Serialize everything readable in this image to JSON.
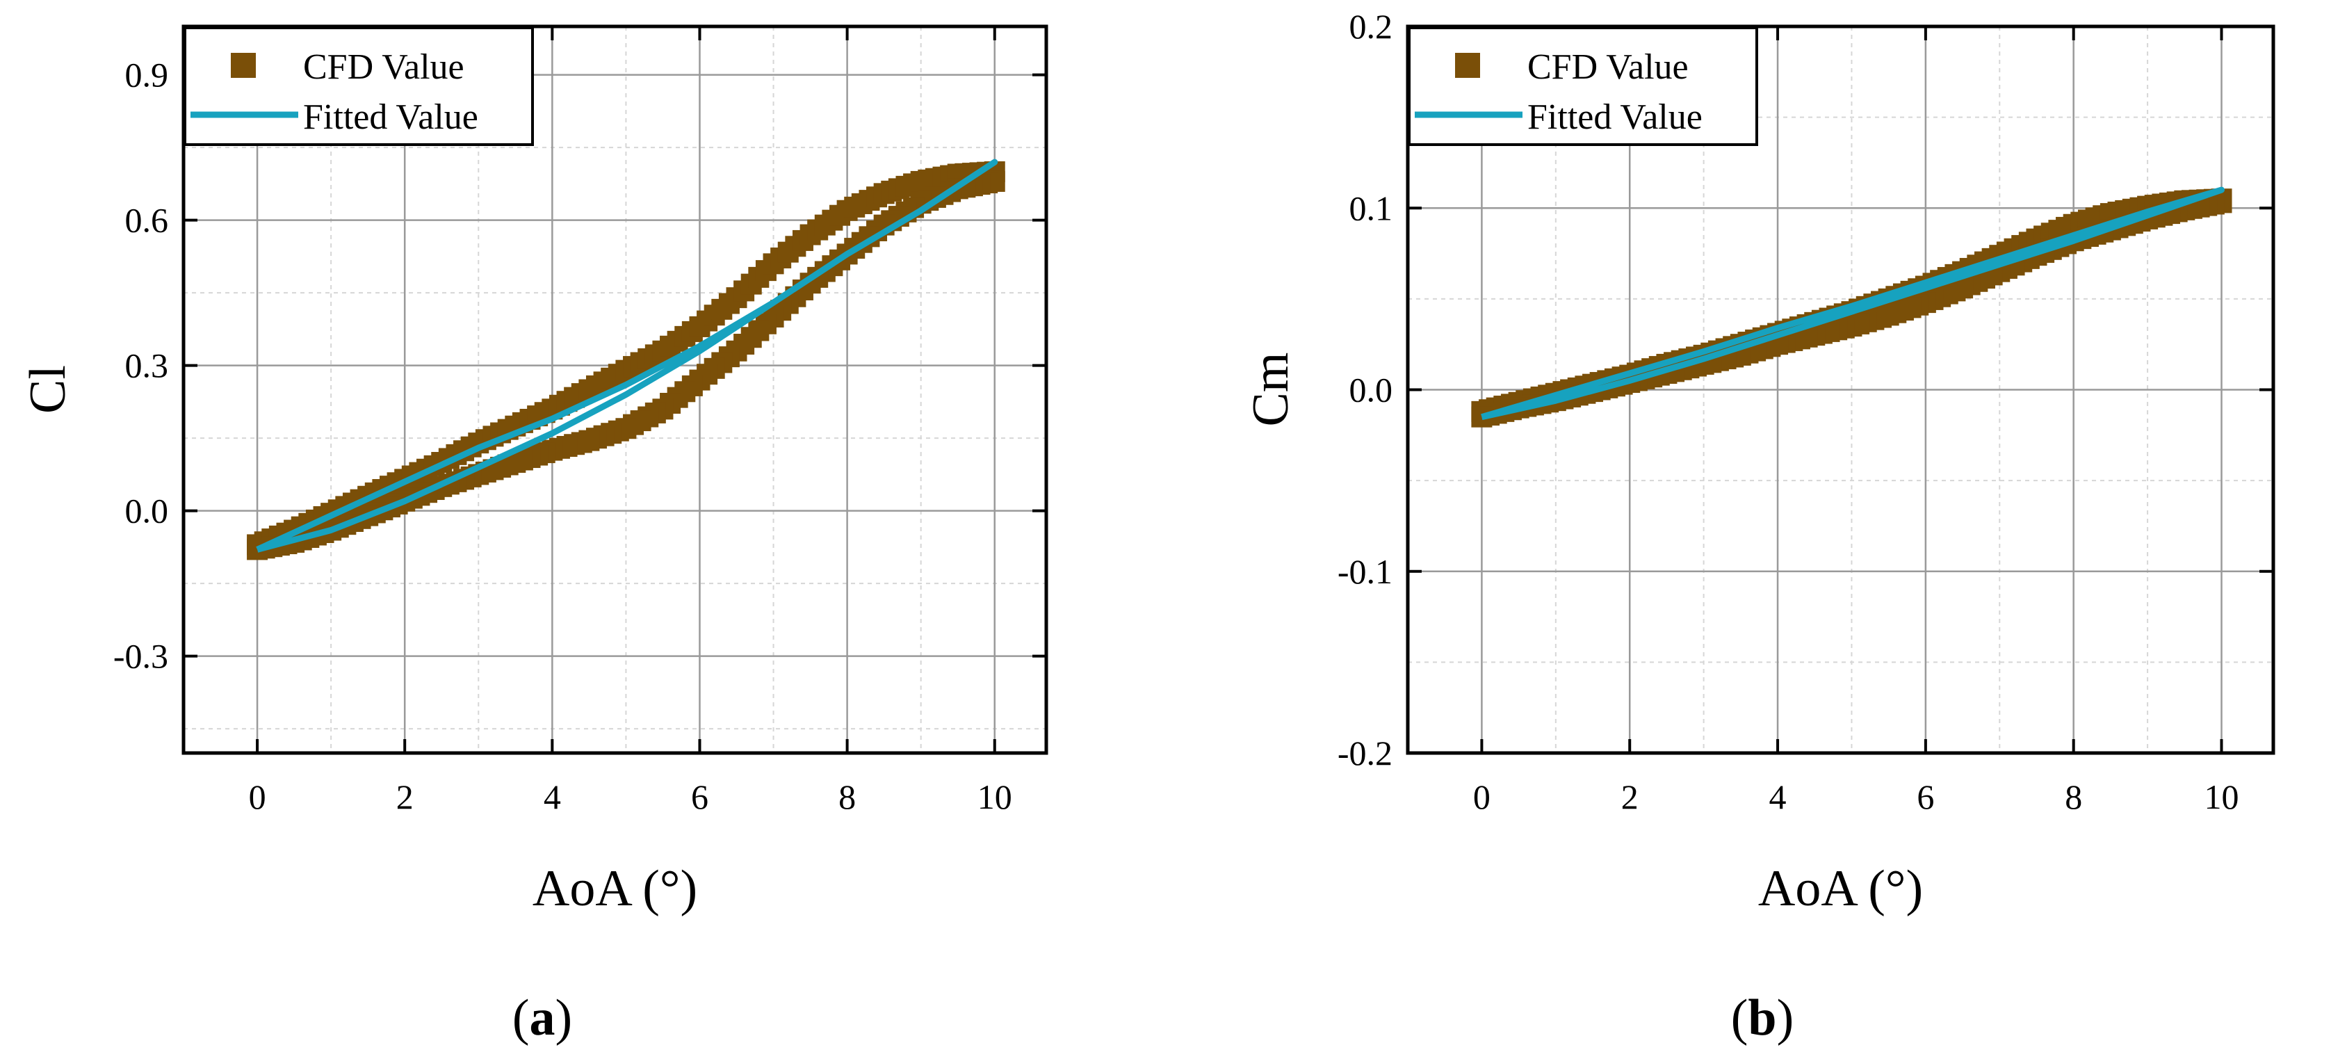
{
  "colors": {
    "cfd": "#7a4f08",
    "fitted": "#17a2bf",
    "grid_major": "#9a9a9a",
    "grid_minor": "#d6d6d6",
    "axis": "#000000"
  },
  "chart_data": [
    {
      "type": "scatter",
      "panel_label": "a",
      "xlabel": "AoA (°)",
      "ylabel": "Cl",
      "xlim": [
        -1,
        10.7
      ],
      "ylim": [
        -0.5,
        1.0
      ],
      "xticks": [
        0,
        2,
        4,
        6,
        8,
        10
      ],
      "xtick_labels": [
        "0",
        "2",
        "4",
        "6",
        "8",
        "10"
      ],
      "yticks": [
        -0.3,
        0.0,
        0.3,
        0.6,
        0.9
      ],
      "ytick_labels": [
        "-0.3",
        "0.0",
        "0.3",
        "0.6",
        "0.9"
      ],
      "grid": true,
      "legend_position": "top-left",
      "series": [
        {
          "name": "CFD Value",
          "kind": "markers",
          "loop_upper": {
            "x": [
              0,
              0.5,
              1,
              1.5,
              2,
              2.5,
              3,
              3.5,
              4,
              4.5,
              5,
              5.5,
              6,
              6.5,
              7,
              7.5,
              8,
              8.5,
              9,
              9.5,
              10
            ],
            "y": [
              -0.07,
              -0.04,
              -0.005,
              0.03,
              0.065,
              0.1,
              0.14,
              0.175,
              0.21,
              0.25,
              0.29,
              0.33,
              0.38,
              0.44,
              0.51,
              0.57,
              0.62,
              0.655,
              0.68,
              0.695,
              0.7
            ]
          },
          "loop_lower": {
            "x": [
              10,
              9.5,
              9,
              8.5,
              8,
              7.5,
              7,
              6.5,
              6,
              5.5,
              5,
              4.5,
              4,
              3.5,
              3,
              2.5,
              2,
              1.5,
              1,
              0.5,
              0
            ],
            "y": [
              0.68,
              0.665,
              0.635,
              0.59,
              0.53,
              0.47,
              0.4,
              0.33,
              0.27,
              0.21,
              0.17,
              0.145,
              0.125,
              0.1,
              0.075,
              0.05,
              0.02,
              -0.01,
              -0.04,
              -0.065,
              -0.08
            ]
          }
        },
        {
          "name": "Fitted Value",
          "kind": "line",
          "loop_upper": {
            "x": [
              0,
              1,
              2,
              3,
              4,
              5,
              6,
              7,
              8,
              9,
              10
            ],
            "y": [
              -0.08,
              -0.01,
              0.06,
              0.13,
              0.19,
              0.26,
              0.34,
              0.43,
              0.53,
              0.62,
              0.72
            ]
          },
          "loop_lower": {
            "x": [
              10,
              9,
              8,
              7,
              6,
              5,
              4,
              3,
              2,
              1,
              0
            ],
            "y": [
              0.72,
              0.62,
              0.53,
              0.43,
              0.33,
              0.24,
              0.16,
              0.09,
              0.02,
              -0.04,
              -0.08
            ]
          }
        }
      ]
    },
    {
      "type": "scatter",
      "panel_label": "b",
      "xlabel": "AoA (°)",
      "ylabel": "Cm",
      "xlim": [
        -1,
        10.7
      ],
      "ylim": [
        -0.2,
        0.2
      ],
      "xticks": [
        0,
        2,
        4,
        6,
        8,
        10
      ],
      "xtick_labels": [
        "0",
        "2",
        "4",
        "6",
        "8",
        "10"
      ],
      "yticks": [
        -0.2,
        -0.1,
        0.0,
        0.1,
        0.2
      ],
      "ytick_labels": [
        "-0.2",
        "-0.1",
        "0.0",
        "0.1",
        "0.2"
      ],
      "grid": true,
      "legend_position": "top-left",
      "series": [
        {
          "name": "CFD Value",
          "kind": "markers",
          "loop_upper": {
            "x": [
              0,
              0.5,
              1,
              1.5,
              2,
              2.5,
              3,
              3.5,
              4,
              4.5,
              5,
              5.5,
              6,
              6.5,
              7,
              7.5,
              8,
              8.5,
              9,
              9.5,
              10
            ],
            "y": [
              -0.012,
              -0.007,
              -0.002,
              0.003,
              0.008,
              0.014,
              0.019,
              0.025,
              0.031,
              0.037,
              0.043,
              0.05,
              0.057,
              0.065,
              0.074,
              0.083,
              0.091,
              0.097,
              0.101,
              0.104,
              0.105
            ]
          },
          "loop_lower": {
            "x": [
              10,
              9.5,
              9,
              8.5,
              8,
              7.5,
              7,
              6.5,
              6,
              5.5,
              5,
              4.5,
              4,
              3.5,
              3,
              2.5,
              2,
              1.5,
              1,
              0.5,
              0
            ],
            "y": [
              0.103,
              0.099,
              0.094,
              0.088,
              0.082,
              0.074,
              0.065,
              0.056,
              0.048,
              0.041,
              0.035,
              0.03,
              0.025,
              0.019,
              0.014,
              0.009,
              0.004,
              -0.001,
              -0.006,
              -0.01,
              -0.015
            ]
          }
        },
        {
          "name": "Fitted Value",
          "kind": "line",
          "loop_upper": {
            "x": [
              0,
              1,
              2,
              3,
              4,
              5,
              6,
              7,
              8,
              9,
              10
            ],
            "y": [
              -0.015,
              -0.003,
              0.009,
              0.021,
              0.034,
              0.046,
              0.059,
              0.072,
              0.085,
              0.098,
              0.11
            ]
          },
          "loop_lower": {
            "x": [
              10,
              9,
              8,
              7,
              6,
              5,
              4,
              3,
              2,
              1,
              0
            ],
            "y": [
              0.11,
              0.096,
              0.082,
              0.069,
              0.056,
              0.043,
              0.03,
              0.017,
              0.005,
              -0.006,
              -0.015
            ]
          }
        }
      ]
    }
  ]
}
